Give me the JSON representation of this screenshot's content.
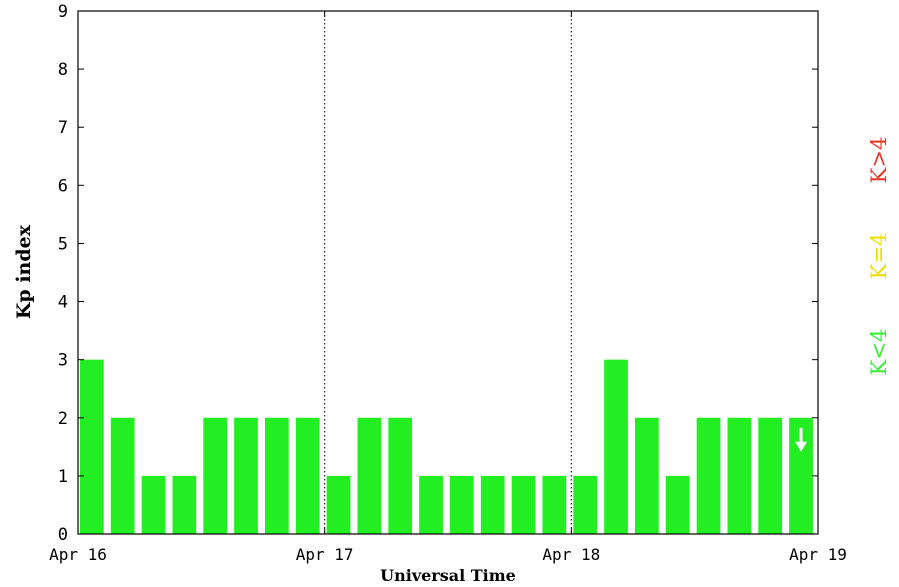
{
  "chart_data": {
    "type": "bar",
    "title": "",
    "xlabel": "Universal Time",
    "ylabel": "Kp index",
    "ylim": [
      0,
      9
    ],
    "yticks": [
      0,
      1,
      2,
      3,
      4,
      5,
      6,
      7,
      8,
      9
    ],
    "xlim": [
      "Apr 16",
      "Apr 19"
    ],
    "xticks": [
      "Apr 16",
      "Apr 17",
      "Apr 18",
      "Apr 19"
    ],
    "bar_interval_hours": 3,
    "values": [
      3,
      2,
      1,
      1,
      2,
      2,
      2,
      2,
      1,
      2,
      2,
      1,
      1,
      1,
      1,
      1,
      1,
      3,
      2,
      1,
      2,
      2,
      2,
      2
    ],
    "bar_color": "#22ee22",
    "day_separators": [
      "Apr 17",
      "Apr 18"
    ],
    "estimated_marker": {
      "bar_index": 23,
      "symbol": "white-down-arrow"
    },
    "legend": {
      "placement": "right",
      "items": [
        {
          "label": "K<4",
          "color": "#33ee33"
        },
        {
          "label": "K=4",
          "color": "#eedd00"
        },
        {
          "label": "K>4",
          "color": "#ee3322"
        }
      ]
    }
  }
}
